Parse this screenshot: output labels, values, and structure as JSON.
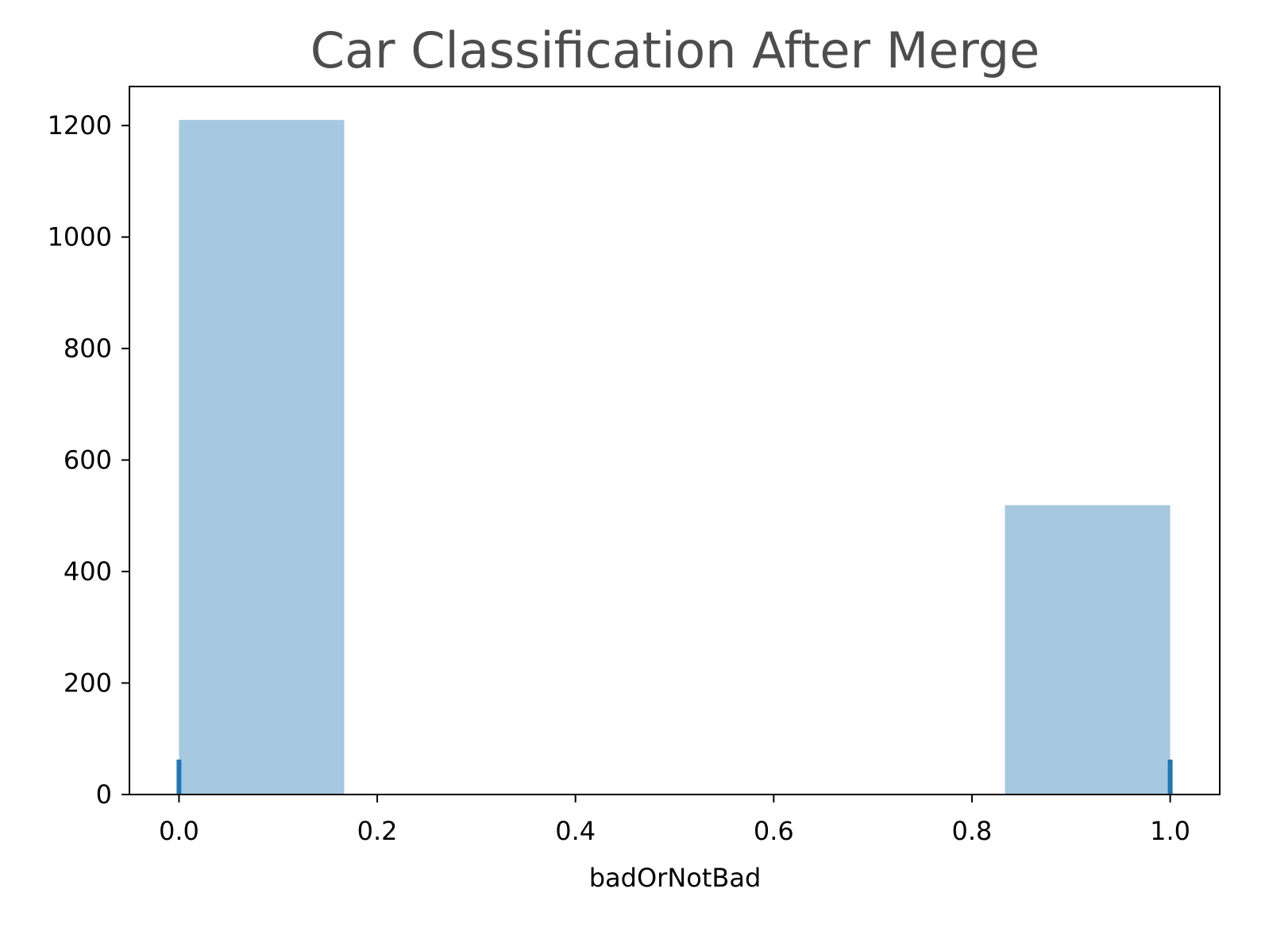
{
  "chart_data": {
    "type": "bar",
    "title": "Car Classification After Merge",
    "xlabel": "badOrNotBad",
    "ylabel": "",
    "xlim": [
      -0.05,
      1.05
    ],
    "ylim": [
      0,
      1270
    ],
    "xticks": [
      0.0,
      0.2,
      0.4,
      0.6,
      0.8,
      1.0
    ],
    "xtick_labels": [
      "0.0",
      "0.2",
      "0.4",
      "0.6",
      "0.8",
      "1.0"
    ],
    "yticks": [
      0,
      200,
      400,
      600,
      800,
      1000,
      1200
    ],
    "ytick_labels": [
      "0",
      "200",
      "400",
      "600",
      "800",
      "1000",
      "1200"
    ],
    "bins": [
      {
        "x0": 0.0,
        "x1": 0.1667,
        "value": 1210
      },
      {
        "x0": 0.8333,
        "x1": 1.0,
        "value": 519
      }
    ],
    "rug": [
      0.0,
      1.0
    ],
    "grid": false,
    "colors": {
      "bar": "#a6c8e0",
      "rug": "#1f77b4",
      "title": "#4d4d4d",
      "axis": "#000000"
    }
  }
}
